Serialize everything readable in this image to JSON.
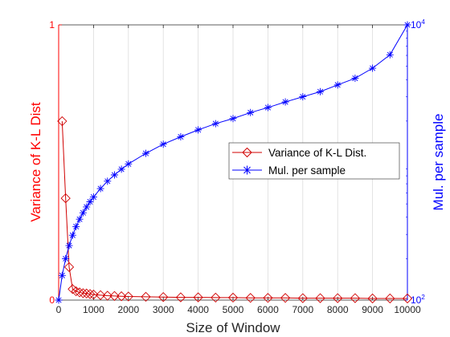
{
  "chart_data": {
    "type": "line",
    "title": "",
    "xlabel": "Size of Window",
    "xlim": [
      0,
      10000
    ],
    "x_tick_labels": [
      "0",
      "1000",
      "2000",
      "3000",
      "4000",
      "5000",
      "6000",
      "7000",
      "8000",
      "9000",
      "10000"
    ],
    "x_grid": true,
    "y_left": {
      "label": "Variance of K-L Dist",
      "ylim": [
        0,
        1
      ],
      "tick_labels": [
        "0",
        "1"
      ],
      "color": "#ff0000"
    },
    "y_right": {
      "label": "Mul. per sample",
      "scale": "log",
      "ylim": [
        100,
        10000
      ],
      "tick_labels": [
        "10^2",
        "10^4"
      ],
      "tick_base": "10",
      "tick_exponents": [
        "2",
        "4"
      ],
      "color": "#0000ff"
    },
    "legend_position": "center-right",
    "series": [
      {
        "name": "Variance of K-L Dist.",
        "axis": "left",
        "color": "#d00000",
        "marker": "diamond",
        "x": [
          100,
          200,
          300,
          400,
          500,
          600,
          700,
          800,
          900,
          1000,
          1200,
          1400,
          1600,
          1800,
          2000,
          2500,
          3000,
          3500,
          4000,
          4500,
          5000,
          5500,
          6000,
          6500,
          7000,
          7500,
          8000,
          8500,
          9000,
          9500,
          10000
        ],
        "values": [
          0.65,
          0.37,
          0.12,
          0.04,
          0.032,
          0.028,
          0.025,
          0.024,
          0.022,
          0.02,
          0.018,
          0.016,
          0.015,
          0.014,
          0.013,
          0.012,
          0.011,
          0.01,
          0.01,
          0.009,
          0.009,
          0.008,
          0.008,
          0.008,
          0.007,
          0.007,
          0.007,
          0.007,
          0.006,
          0.006,
          0.006
        ]
      },
      {
        "name": "Mul. per sample",
        "axis": "right",
        "color": "#0000ff",
        "marker": "asterisk",
        "x": [
          1,
          100,
          200,
          300,
          400,
          500,
          600,
          700,
          800,
          900,
          1000,
          1200,
          1400,
          1600,
          1800,
          2000,
          2500,
          3000,
          3500,
          4000,
          4500,
          5000,
          5500,
          6000,
          6500,
          7000,
          7500,
          8000,
          8500,
          9000,
          9500,
          10000
        ],
        "values": [
          100,
          151,
          200,
          249,
          296,
          342,
          387,
          431,
          475,
          518,
          561,
          646,
          731,
          812,
          893,
          976,
          1165,
          1358,
          1537,
          1725,
          1916,
          2085,
          2305,
          2507,
          2754,
          3003,
          3270,
          3662,
          4092,
          4842,
          6062,
          10000
        ]
      }
    ]
  }
}
